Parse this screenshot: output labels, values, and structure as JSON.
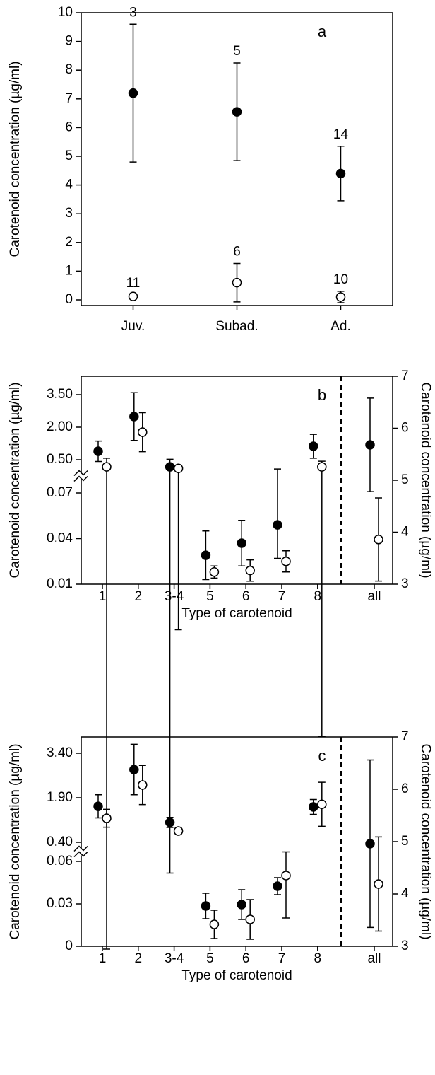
{
  "chart_data": [
    {
      "type": "errorbar",
      "panel_label": "a",
      "ylabel": "Carotenoid concentration (µg/ml)",
      "categories": [
        "Juv.",
        "Subad.",
        "Ad."
      ],
      "ylim": [
        0,
        10
      ],
      "yticks": [
        0,
        1,
        2,
        3,
        4,
        5,
        6,
        7,
        8,
        9,
        10
      ],
      "series": [
        {
          "marker": "filled",
          "color": "#000000",
          "values": [
            7.2,
            6.55,
            4.4
          ],
          "errors": [
            2.4,
            1.7,
            0.95
          ],
          "n": [
            "3",
            "5",
            "14"
          ]
        },
        {
          "marker": "open",
          "color": "#000000",
          "values": [
            0.12,
            0.6,
            0.1
          ],
          "errors": [
            0.05,
            0.67,
            0.2
          ],
          "n": [
            "11",
            "6",
            "10"
          ]
        }
      ]
    },
    {
      "type": "errorbar",
      "panel_label": "b",
      "ylabel": "Carotenoid concentration (µg/ml)",
      "y2label": "Carotenoid concentration (µg/ml)",
      "xlabel": "Type of carotenoid",
      "divider": true,
      "categories": [
        "1",
        "2",
        "3-4",
        "5",
        "6",
        "7",
        "8",
        "all"
      ],
      "ylim": [
        0.01,
        3.5
      ],
      "ybreak": [
        0.07,
        0.5
      ],
      "yticks": [
        0.01,
        0.04,
        0.07,
        {
          "value": 0.5,
          "label": "0.50"
        },
        {
          "value": 2,
          "label": "2.00"
        },
        {
          "value": 3.5,
          "label": "3.50"
        }
      ],
      "y2lim": [
        3,
        7
      ],
      "y2ticks": [
        3,
        4,
        5,
        6,
        7
      ],
      "series": [
        {
          "marker": "filled",
          "color": "#000000",
          "values": [
            0.89,
            2.49,
            0.17,
            0.029,
            0.037,
            0.049,
            1.12,
            null
          ],
          "errors": [
            0.47,
            1.1,
            0.35,
            0.016,
            0.015,
            0.022,
            0.55,
            null
          ]
        },
        {
          "marker": "open",
          "color": "#000000",
          "values": [
            0.17,
            1.77,
            0.1,
            0.018,
            0.019,
            0.025,
            0.17,
            null
          ],
          "errors": [
            0.4,
            0.9,
            0.12,
            0.004,
            0.007,
            0.007,
            0.26,
            null
          ]
        },
        {
          "marker": "filled",
          "color": "#000000",
          "axis": "y2",
          "values": [
            null,
            null,
            null,
            null,
            null,
            null,
            null,
            5.68
          ],
          "errors": [
            null,
            null,
            null,
            null,
            null,
            null,
            null,
            0.9
          ]
        },
        {
          "marker": "open",
          "color": "#000000",
          "axis": "y2",
          "values": [
            null,
            null,
            null,
            null,
            null,
            null,
            null,
            3.86
          ],
          "errors": [
            null,
            null,
            null,
            null,
            null,
            null,
            null,
            0.8
          ]
        }
      ]
    },
    {
      "type": "errorbar",
      "panel_label": "c",
      "ylabel": "Carotenoid concentration (µg/ml)",
      "y2label": "Carotenoid concentration (µg/ml)",
      "xlabel": "Type of carotenoid",
      "divider": true,
      "categories": [
        "1",
        "2",
        "3-4",
        "5",
        "6",
        "7",
        "8",
        "all"
      ],
      "ylim": [
        0,
        3.4
      ],
      "ybreak": [
        0.06,
        0.4
      ],
      "yticks": [
        0,
        0.03,
        0.06,
        {
          "value": 0.4,
          "label": "0.40"
        },
        {
          "value": 1.9,
          "label": "1.90"
        },
        {
          "value": 3.4,
          "label": "3.40"
        }
      ],
      "y2lim": [
        3,
        7
      ],
      "y2ticks": [
        3,
        4,
        5,
        6,
        7
      ],
      "series": [
        {
          "marker": "filled",
          "color": "#000000",
          "values": [
            1.61,
            2.85,
            1.07,
            0.0285,
            0.0295,
            0.0425,
            1.59,
            null
          ],
          "errors": [
            0.39,
            0.85,
            0.17,
            0.009,
            0.0105,
            0.006,
            0.25,
            null
          ]
        },
        {
          "marker": "open",
          "color": "#000000",
          "values": [
            1.21,
            2.33,
            0.78,
            0.0155,
            0.019,
            0.05,
            1.68,
            null
          ],
          "errors": [
            0.3,
            0.66,
            0.12,
            0.01,
            0.014,
            0.03,
            0.74,
            null
          ]
        },
        {
          "marker": "filled",
          "color": "#000000",
          "axis": "y2",
          "values": [
            null,
            null,
            null,
            null,
            null,
            null,
            null,
            4.96
          ],
          "errors": [
            null,
            null,
            null,
            null,
            null,
            null,
            null,
            1.6
          ]
        },
        {
          "marker": "open",
          "color": "#000000",
          "axis": "y2",
          "values": [
            null,
            null,
            null,
            null,
            null,
            null,
            null,
            4.19
          ],
          "errors": [
            null,
            null,
            null,
            null,
            null,
            null,
            null,
            0.9
          ]
        }
      ]
    }
  ]
}
